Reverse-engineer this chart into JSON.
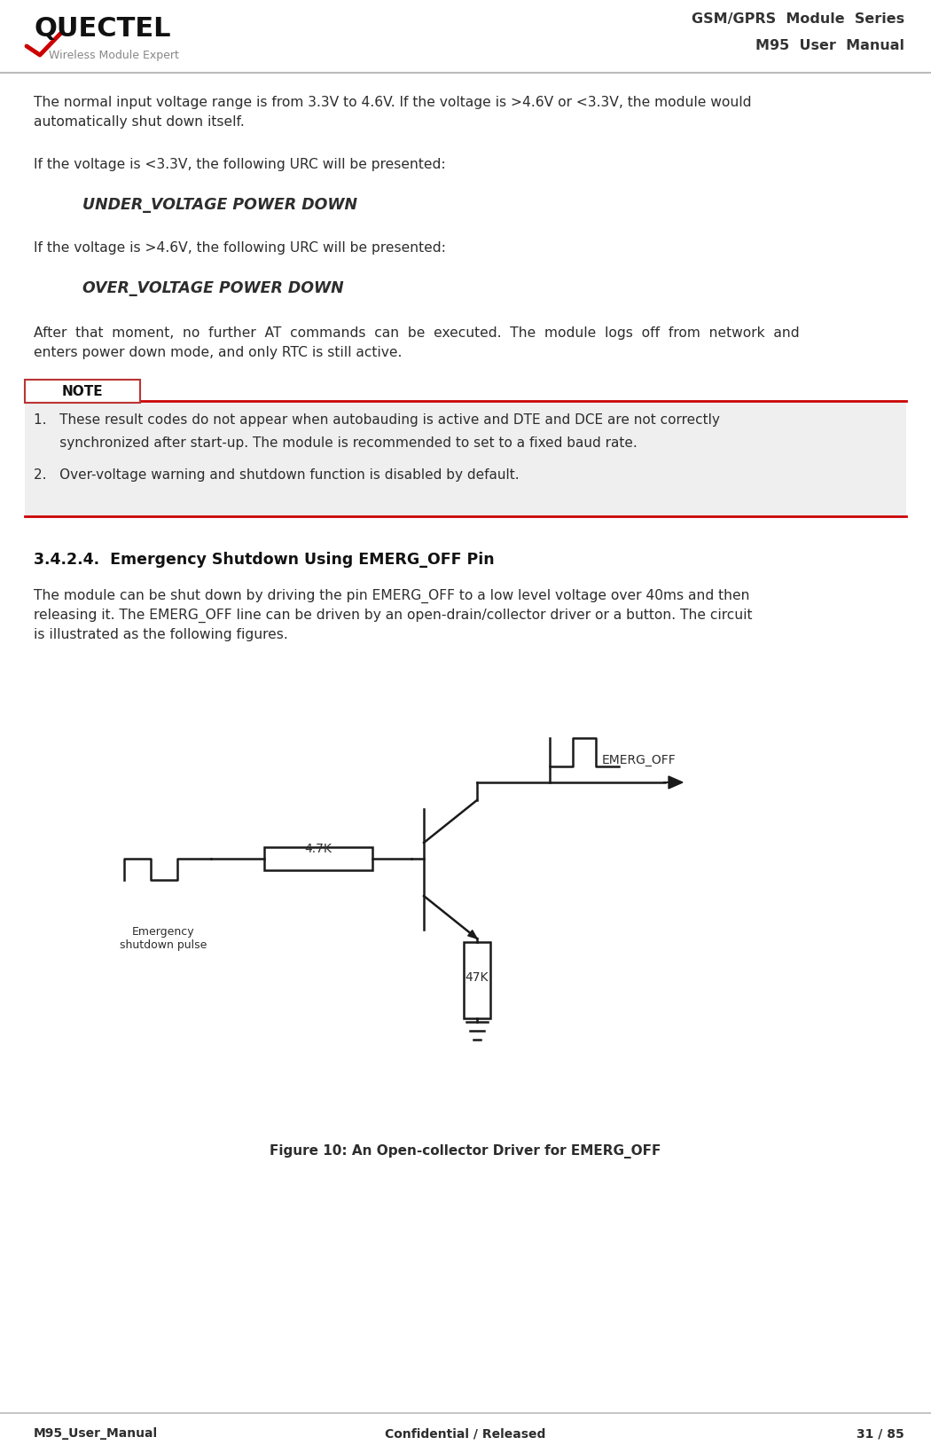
{
  "header_title_line1": "GSM/GPRS  Module  Series",
  "header_title_line2": "M95  User  Manual",
  "footer_left": "M95_User_Manual",
  "footer_center": "Confidential / Released",
  "footer_right": "31 / 85",
  "para1_l1": "The normal input voltage range is from 3.3V to 4.6V. If the voltage is >4.6V or <3.3V, the module would",
  "para1_l2": "automatically shut down itself.",
  "para2": "If the voltage is <3.3V, the following URC will be presented:",
  "under_voltage": "UNDER_VOLTAGE POWER DOWN",
  "para3": "If the voltage is >4.6V, the following URC will be presented:",
  "over_voltage": "OVER_VOLTAGE POWER DOWN",
  "para4_l1": "After  that  moment,  no  further  AT  commands  can  be  executed.  The  module  logs  off  from  network  and",
  "para4_l2": "enters power down mode, and only RTC is still active.",
  "note_label": "NOTE",
  "note1_l1": "1.   These result codes do not appear when autobauding is active and DTE and DCE are not correctly",
  "note1_l2": "      synchronized after start-up. The module is recommended to set to a fixed baud rate.",
  "note2": "2.   Over-voltage warning and shutdown function is disabled by default.",
  "section_title": "3.4.2.4.  Emergency Shutdown Using EMERG_OFF Pin",
  "para5_l1": "The module can be shut down by driving the pin EMERG_OFF to a low level voltage over 40ms and then",
  "para5_l2": "releasing it. The EMERG_OFF line can be driven by an open-drain/collector driver or a button. The circuit",
  "para5_l3": "is illustrated as the following figures.",
  "fig_caption": "Figure 10: An Open-collector Driver for EMERG_OFF",
  "label_47k": "47K",
  "label_47k_top": "4.7K",
  "label_emerg_off": "EMERG_OFF",
  "label_pulse": "Emergency\nshutdown pulse",
  "bg_color": "#ffffff",
  "text_color": "#2d2d2d",
  "header_line_color": "#bbbbbb",
  "footer_line_color": "#bbbbbb",
  "note_bg_color": "#efefef",
  "note_top_line_color": "#cc0000",
  "note_bottom_line_color": "#cc0000",
  "circuit_color": "#1a1a1a"
}
